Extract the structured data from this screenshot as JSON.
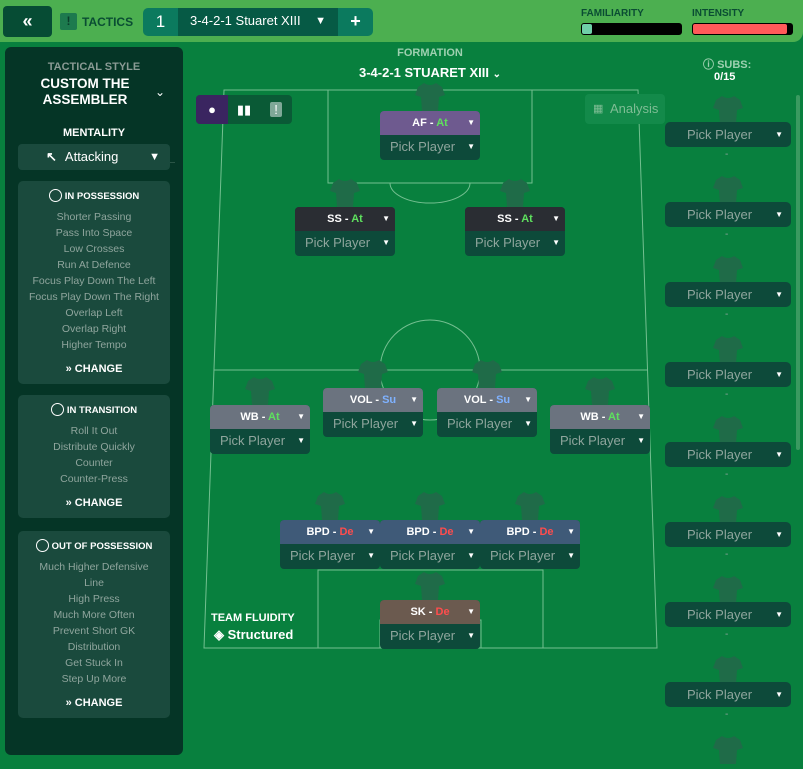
{
  "header": {
    "back_icon": "double-chevron-left",
    "tactics_label": "TACTICS",
    "tab_number": "1",
    "tab_name": "3-4-2-1 Stuaret XIII",
    "add_label": "+",
    "familiarity_label": "FAMILIARITY",
    "intensity_label": "INTENSITY",
    "familiarity_level": 0.1,
    "intensity_level": 0.95,
    "intensity_color": "#ff5a5a",
    "familiarity_color": "#6fd0a8"
  },
  "sidebar": {
    "style_label": "TACTICAL STYLE",
    "style_name": "CUSTOM THE ASSEMBLER",
    "mentality_label": "MENTALITY",
    "mentality": "Attacking",
    "panels": [
      {
        "title": "IN POSSESSION",
        "items": [
          "Shorter Passing",
          "Pass Into Space",
          "Low Crosses",
          "Run At Defence",
          "Focus Play Down The Left",
          "Focus Play Down The Right",
          "Overlap Left",
          "Overlap Right",
          "Higher Tempo"
        ],
        "change": "CHANGE"
      },
      {
        "title": "IN TRANSITION",
        "items": [
          "Roll It Out",
          "Distribute Quickly",
          "Counter",
          "Counter-Press"
        ],
        "change": "CHANGE"
      },
      {
        "title": "OUT OF POSSESSION",
        "items": [
          "Much Higher Defensive",
          "Line",
          "High Press",
          "Much More Often",
          "Prevent Short GK",
          "Distribution",
          "Get Stuck In",
          "Step Up More"
        ],
        "change": "CHANGE"
      }
    ]
  },
  "formation": {
    "label": "FORMATION",
    "name": "3-4-2-1 STUARET XIII",
    "analysis": "Analysis",
    "fluidity_label": "TEAM FLUIDITY",
    "fluidity": "Structured"
  },
  "duty_colors": {
    "At": "#5ee05e",
    "Su": "#7fb2ff",
    "De": "#ff4d4d"
  },
  "positions": [
    {
      "role": "AF",
      "duty": "At",
      "player": "Pick Player",
      "color": "#6e5a8f"
    },
    {
      "role": "SS",
      "duty": "At",
      "player": "Pick Player",
      "color": "#2a2d33"
    },
    {
      "role": "SS",
      "duty": "At",
      "player": "Pick Player",
      "color": "#2a2d33"
    },
    {
      "role": "VOL",
      "duty": "Su",
      "player": "Pick Player",
      "color": "#6b737f"
    },
    {
      "role": "VOL",
      "duty": "Su",
      "player": "Pick Player",
      "color": "#6b737f"
    },
    {
      "role": "WB",
      "duty": "At",
      "player": "Pick Player",
      "color": "#6b737f"
    },
    {
      "role": "WB",
      "duty": "At",
      "player": "Pick Player",
      "color": "#6b737f"
    },
    {
      "role": "BPD",
      "duty": "De",
      "player": "Pick Player",
      "color": "#3f5a78"
    },
    {
      "role": "BPD",
      "duty": "De",
      "player": "Pick Player",
      "color": "#3f5a78"
    },
    {
      "role": "BPD",
      "duty": "De",
      "player": "Pick Player",
      "color": "#3f5a78"
    },
    {
      "role": "SK",
      "duty": "De",
      "player": "Pick Player",
      "color": "#6b5a4f"
    }
  ],
  "subs": {
    "label": "SUBS:",
    "count": "0/15",
    "slots": [
      "Pick Player",
      "Pick Player",
      "Pick Player",
      "Pick Player",
      "Pick Player",
      "Pick Player",
      "Pick Player",
      "Pick Player"
    ],
    "empty": "-"
  }
}
